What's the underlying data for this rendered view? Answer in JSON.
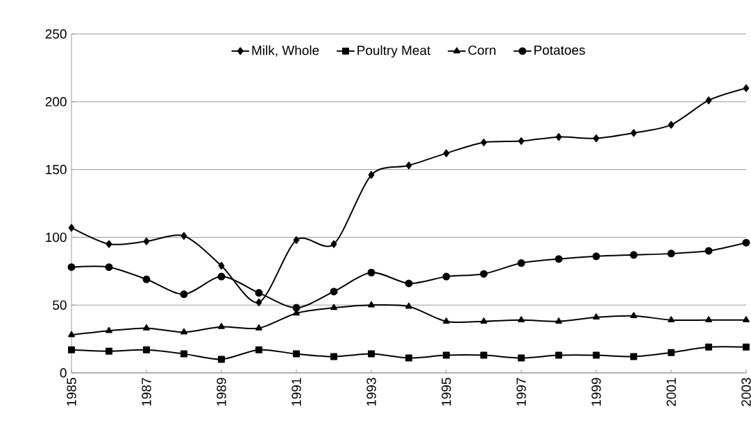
{
  "chart_data": {
    "type": "line",
    "x": [
      1985,
      1986,
      1987,
      1988,
      1989,
      1990,
      1991,
      1992,
      1993,
      1994,
      1995,
      1996,
      1997,
      1998,
      1999,
      2000,
      2001,
      2002,
      2003
    ],
    "xlim": [
      1985,
      2003
    ],
    "xticks": [
      1985,
      1987,
      1989,
      1991,
      1993,
      1995,
      1997,
      1999,
      2001,
      2003
    ],
    "ylim": [
      0,
      250
    ],
    "yticks": [
      0,
      50,
      100,
      150,
      200,
      250
    ],
    "grid": "y",
    "legend": "top",
    "series": [
      {
        "name": "Milk, Whole",
        "color": "#000000",
        "marker": "diamond",
        "values": [
          107,
          95,
          97,
          101,
          79,
          52,
          98,
          95,
          146,
          153,
          162,
          170,
          171,
          174,
          173,
          177,
          183,
          201,
          210
        ]
      },
      {
        "name": "Poultry Meat",
        "color": "#000000",
        "marker": "square",
        "values": [
          17,
          16,
          17,
          14,
          10,
          17,
          14,
          12,
          14,
          11,
          13,
          13,
          11,
          13,
          13,
          12,
          15,
          19,
          19
        ]
      },
      {
        "name": "Corn",
        "color": "#000000",
        "marker": "triangle",
        "values": [
          28,
          31,
          33,
          30,
          34,
          33,
          44,
          48,
          50,
          49,
          38,
          38,
          39,
          38,
          41,
          42,
          39,
          39,
          39
        ]
      },
      {
        "name": "Potatoes",
        "color": "#000000",
        "marker": "circle",
        "values": [
          78,
          78,
          69,
          58,
          71,
          59,
          48,
          60,
          74,
          66,
          71,
          73,
          81,
          84,
          86,
          87,
          88,
          90,
          96
        ]
      }
    ]
  }
}
